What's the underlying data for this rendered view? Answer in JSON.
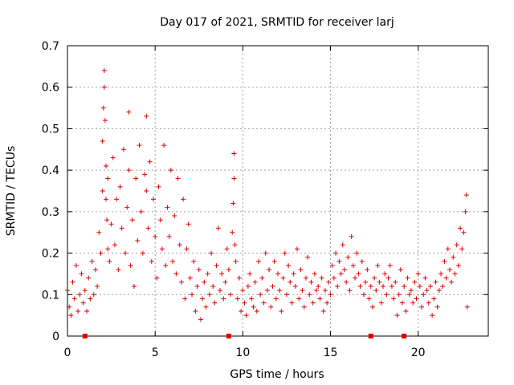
{
  "chart_data": {
    "type": "scatter",
    "title": "Day 017 of 2021, SRMTID for receiver larj",
    "xlabel": "GPS time / hours",
    "ylabel": "SRMTID / TECUs",
    "xlim": [
      0,
      24
    ],
    "ylim": [
      0,
      0.7
    ],
    "xticks": [
      0,
      5,
      10,
      15,
      20
    ],
    "xtick_labels": [
      "0",
      "5",
      "10",
      "15",
      "20"
    ],
    "yticks": [
      0,
      0.1,
      0.2,
      0.3,
      0.4,
      0.5,
      0.6,
      0.7
    ],
    "ytick_labels": [
      "0",
      "0.1",
      "0.2",
      "0.3",
      "0.4",
      "0.5",
      "0.6",
      "0.7"
    ],
    "grid": true,
    "marker": "+",
    "color": "#e00000",
    "series": [
      {
        "name": "SRMTID",
        "x": [
          0.0,
          0.1,
          0.2,
          0.3,
          0.4,
          0.5,
          0.6,
          0.7,
          0.8,
          0.9,
          1.0,
          1.1,
          1.2,
          1.3,
          1.4,
          1.5,
          1.6,
          1.7,
          1.8,
          1.9,
          2.0,
          2.0,
          2.05,
          2.1,
          2.1,
          2.15,
          2.2,
          2.2,
          2.25,
          2.3,
          2.3,
          2.4,
          2.5,
          2.6,
          2.7,
          2.8,
          2.9,
          3.0,
          3.1,
          3.2,
          3.3,
          3.4,
          3.5,
          3.5,
          3.6,
          3.7,
          3.8,
          3.9,
          4.0,
          4.1,
          4.2,
          4.3,
          4.4,
          4.5,
          4.5,
          4.6,
          4.7,
          4.8,
          4.9,
          5.0,
          5.1,
          5.2,
          5.3,
          5.4,
          5.5,
          5.6,
          5.7,
          5.8,
          5.9,
          6.0,
          6.1,
          6.2,
          6.3,
          6.4,
          6.5,
          6.6,
          6.7,
          6.8,
          6.9,
          7.0,
          7.1,
          7.2,
          7.3,
          7.4,
          7.5,
          7.6,
          7.7,
          7.8,
          7.9,
          8.0,
          8.1,
          8.2,
          8.3,
          8.4,
          8.5,
          8.6,
          8.7,
          8.8,
          8.9,
          9.0,
          9.1,
          9.2,
          9.3,
          9.4,
          9.45,
          9.5,
          9.5,
          9.55,
          9.6,
          9.7,
          9.8,
          9.9,
          10.0,
          10.1,
          10.2,
          10.3,
          10.4,
          10.5,
          10.6,
          10.7,
          10.8,
          10.9,
          11.0,
          11.1,
          11.2,
          11.3,
          11.4,
          11.5,
          11.6,
          11.7,
          11.8,
          11.9,
          12.0,
          12.1,
          12.2,
          12.3,
          12.4,
          12.5,
          12.6,
          12.7,
          12.8,
          12.9,
          13.0,
          13.1,
          13.2,
          13.3,
          13.4,
          13.5,
          13.6,
          13.7,
          13.8,
          13.9,
          14.0,
          14.1,
          14.2,
          14.3,
          14.4,
          14.5,
          14.6,
          14.7,
          14.8,
          14.9,
          15.0,
          15.1,
          15.2,
          15.3,
          15.4,
          15.5,
          15.6,
          15.7,
          15.8,
          15.9,
          16.0,
          16.1,
          16.2,
          16.3,
          16.4,
          16.5,
          16.6,
          16.7,
          16.8,
          16.9,
          17.0,
          17.1,
          17.2,
          17.3,
          17.4,
          17.5,
          17.6,
          17.7,
          17.8,
          17.9,
          18.0,
          18.1,
          18.2,
          18.3,
          18.4,
          18.5,
          18.6,
          18.7,
          18.8,
          18.9,
          19.0,
          19.1,
          19.2,
          19.3,
          19.4,
          19.5,
          19.6,
          19.7,
          19.8,
          19.9,
          20.0,
          20.1,
          20.2,
          20.3,
          20.4,
          20.5,
          20.6,
          20.7,
          20.8,
          20.9,
          21.0,
          21.1,
          21.2,
          21.3,
          21.4,
          21.5,
          21.6,
          21.7,
          21.8,
          21.9,
          22.0,
          22.1,
          22.2,
          22.3,
          22.4,
          22.5,
          22.6,
          22.7,
          22.75,
          22.8
        ],
        "y": [
          0.11,
          0.07,
          0.05,
          0.13,
          0.09,
          0.17,
          0.06,
          0.1,
          0.15,
          0.08,
          0.11,
          0.06,
          0.14,
          0.09,
          0.18,
          0.1,
          0.16,
          0.12,
          0.25,
          0.2,
          0.35,
          0.47,
          0.55,
          0.64,
          0.6,
          0.52,
          0.41,
          0.33,
          0.28,
          0.21,
          0.38,
          0.18,
          0.27,
          0.43,
          0.22,
          0.33,
          0.16,
          0.36,
          0.26,
          0.45,
          0.2,
          0.31,
          0.54,
          0.4,
          0.17,
          0.28,
          0.12,
          0.38,
          0.23,
          0.46,
          0.3,
          0.2,
          0.39,
          0.53,
          0.35,
          0.26,
          0.42,
          0.18,
          0.33,
          0.24,
          0.14,
          0.36,
          0.28,
          0.21,
          0.46,
          0.17,
          0.31,
          0.24,
          0.4,
          0.18,
          0.29,
          0.15,
          0.38,
          0.22,
          0.13,
          0.33,
          0.09,
          0.21,
          0.27,
          0.14,
          0.1,
          0.18,
          0.06,
          0.12,
          0.16,
          0.04,
          0.09,
          0.13,
          0.07,
          0.15,
          0.1,
          0.2,
          0.12,
          0.08,
          0.17,
          0.26,
          0.11,
          0.15,
          0.09,
          0.13,
          0.21,
          0.16,
          0.1,
          0.25,
          0.32,
          0.44,
          0.38,
          0.22,
          0.18,
          0.09,
          0.14,
          0.06,
          0.11,
          0.08,
          0.05,
          0.12,
          0.15,
          0.09,
          0.07,
          0.13,
          0.06,
          0.18,
          0.1,
          0.14,
          0.08,
          0.2,
          0.11,
          0.16,
          0.07,
          0.12,
          0.18,
          0.09,
          0.15,
          0.11,
          0.06,
          0.14,
          0.2,
          0.1,
          0.17,
          0.13,
          0.08,
          0.15,
          0.12,
          0.21,
          0.09,
          0.16,
          0.11,
          0.07,
          0.14,
          0.19,
          0.1,
          0.13,
          0.08,
          0.15,
          0.11,
          0.12,
          0.09,
          0.14,
          0.06,
          0.11,
          0.08,
          0.13,
          0.1,
          0.17,
          0.14,
          0.2,
          0.12,
          0.18,
          0.15,
          0.22,
          0.16,
          0.13,
          0.19,
          0.11,
          0.24,
          0.17,
          0.14,
          0.2,
          0.15,
          0.12,
          0.18,
          0.1,
          0.13,
          0.16,
          0.09,
          0.12,
          0.07,
          0.14,
          0.11,
          0.17,
          0.13,
          0.08,
          0.12,
          0.15,
          0.1,
          0.14,
          0.17,
          0.12,
          0.09,
          0.13,
          0.05,
          0.1,
          0.16,
          0.08,
          0.12,
          0.06,
          0.14,
          0.1,
          0.11,
          0.08,
          0.13,
          0.09,
          0.15,
          0.12,
          0.07,
          0.1,
          0.14,
          0.11,
          0.08,
          0.12,
          0.05,
          0.09,
          0.13,
          0.07,
          0.11,
          0.15,
          0.12,
          0.18,
          0.14,
          0.21,
          0.16,
          0.13,
          0.19,
          0.15,
          0.22,
          0.17,
          0.26,
          0.21,
          0.25,
          0.3,
          0.34,
          0.07
        ]
      }
    ],
    "x_axis_markers": [
      1.0,
      9.2,
      17.3,
      19.2
    ]
  }
}
